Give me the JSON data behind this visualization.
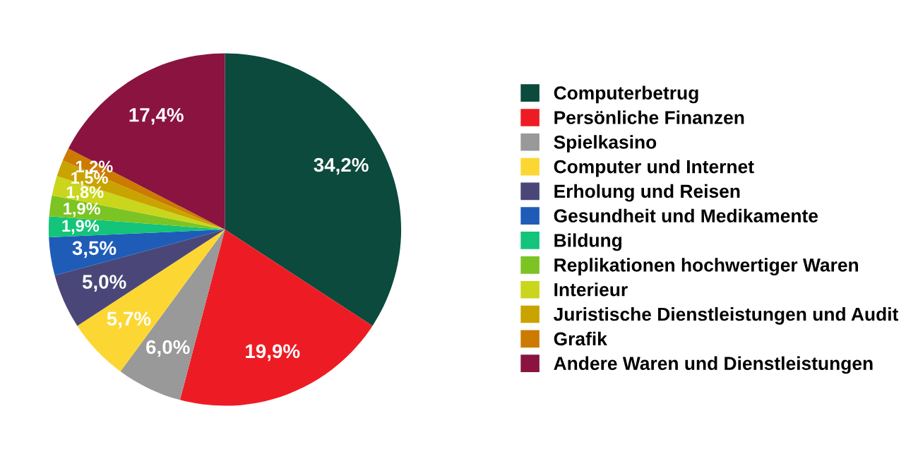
{
  "chart_data": {
    "type": "pie",
    "categories": [
      "Computerbetrug",
      "Persönliche Finanzen",
      "Spielkasino",
      "Computer und Internet",
      "Erholung und Reisen",
      "Gesundheit und Medikamente",
      "Bildung",
      "Replikationen hochwertiger Waren",
      "Interieur",
      "Juristische Dienstleistungen und Audit",
      "Grafik",
      "Andere Waren und Dienstleistungen"
    ],
    "values": [
      34.2,
      19.9,
      6.0,
      5.7,
      5.0,
      3.5,
      1.9,
      1.9,
      1.8,
      1.5,
      1.2,
      17.4
    ],
    "value_labels": [
      "34,2%",
      "19,9%",
      "6,0%",
      "5,7%",
      "5,0%",
      "3,5%",
      "1,9%",
      "1,9%",
      "1,8%",
      "1,5%",
      "1,2%",
      "17,4%"
    ],
    "colors": [
      "#0b4a3c",
      "#ed1c24",
      "#999999",
      "#fcd734",
      "#4a4778",
      "#1f5cb8",
      "#13c47a",
      "#7cc423",
      "#c9d61c",
      "#c9a400",
      "#cc7a00",
      "#8a1340"
    ],
    "legend": "right"
  }
}
